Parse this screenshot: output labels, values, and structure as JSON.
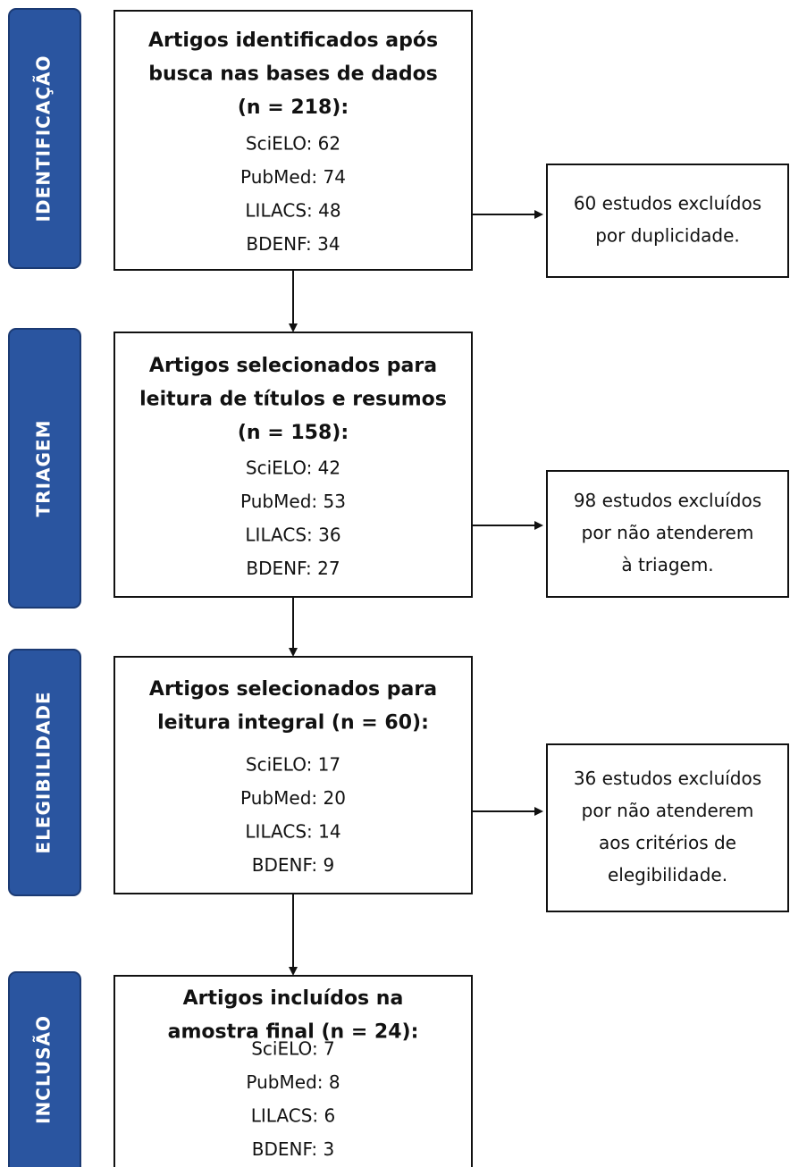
{
  "stages": [
    {
      "label": "IDENTIFICAÇÃO",
      "title": [
        "Artigos identificados após",
        "busca nas bases de dados",
        "(n = 218):"
      ],
      "sources": [
        "SciELO: 62",
        "PubMed: 74",
        "LILACS: 48",
        "BDENF: 34"
      ],
      "excluded": [
        "60 estudos excluídos",
        "por duplicidade."
      ]
    },
    {
      "label": "TRIAGEM",
      "title": [
        "Artigos selecionados para",
        "leitura de títulos e resumos",
        "(n = 158):"
      ],
      "sources": [
        "SciELO: 42",
        "PubMed: 53",
        "LILACS: 36",
        "BDENF: 27"
      ],
      "excluded": [
        "98 estudos excluídos",
        "por não atenderem",
        "à triagem."
      ]
    },
    {
      "label": "ELEGIBILIDADE",
      "title": [
        "Artigos selecionados para",
        "leitura integral (n = 60):"
      ],
      "sources": [
        "SciELO: 17",
        "PubMed: 20",
        "LILACS: 14",
        "BDENF: 9"
      ],
      "excluded": [
        "36 estudos excluídos",
        "por não atenderem",
        "aos critérios de",
        "elegibilidade."
      ]
    },
    {
      "label": "INCLUSÃO",
      "title": [
        "Artigos incluídos na",
        "amostra final (n = 24):"
      ],
      "sources": [
        "SciELO: 7",
        "PubMed: 8",
        "LILACS: 6",
        "BDENF: 3"
      ]
    }
  ]
}
